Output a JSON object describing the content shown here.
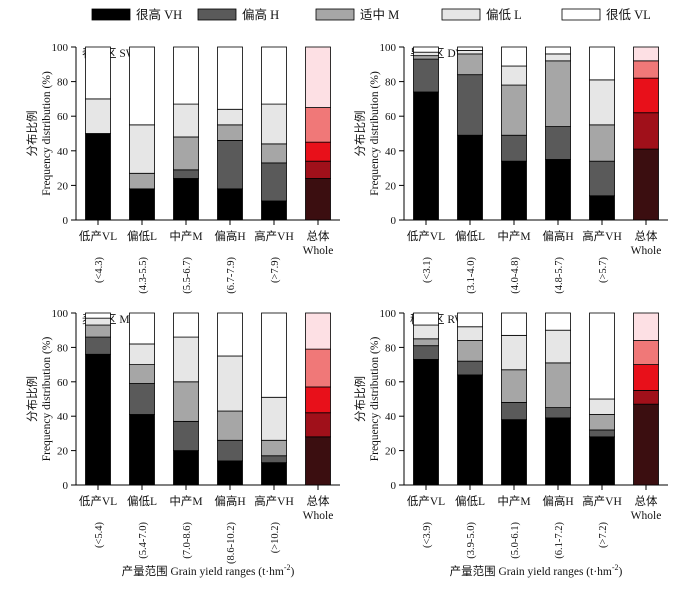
{
  "legend": [
    {
      "label": "很高 VH",
      "color": "#000000"
    },
    {
      "label": "偏高 H",
      "color": "#5a5a5a"
    },
    {
      "label": "适中 M",
      "color": "#a6a6a6"
    },
    {
      "label": "偏低 L",
      "color": "#e6e6e6"
    },
    {
      "label": "很低 VL",
      "color": "#ffffff"
    }
  ],
  "whole_colors": [
    "#3b0e10",
    "#a0101a",
    "#e8101a",
    "#f07878",
    "#fde0e4"
  ],
  "y_axis_label_cn": "分布比例",
  "y_axis_label_en": "Frequency distribution (%)",
  "x_axis_label": "产量范围 Grain yield ranges (t·hm",
  "x_axis_label_sup": "-2",
  "x_axis_label_close": ")",
  "chart_data": [
    {
      "type": "bar",
      "stacked": true,
      "title": "春麦区 SW",
      "categories": [
        "低产VL",
        "偏低L",
        "中产M",
        "偏高H",
        "高产VH",
        "总体"
      ],
      "categories_sub": [
        "",
        "",
        "",
        "",
        "",
        "Whole"
      ],
      "ranges": [
        "(<4.3)",
        "(4.3-5.5)",
        "(5.5-6.7)",
        "(6.7-7.9)",
        "(>7.9)",
        ""
      ],
      "ylim": [
        0,
        100
      ],
      "yticks": [
        "0",
        "20",
        "40",
        "60",
        "80",
        "100"
      ],
      "series": [
        {
          "name": "很高 VH",
          "values": [
            50,
            18,
            24,
            18,
            11,
            24
          ]
        },
        {
          "name": "偏高 H",
          "values": [
            0,
            0,
            5,
            28,
            22,
            10
          ]
        },
        {
          "name": "适中 M",
          "values": [
            0,
            9,
            19,
            9,
            11,
            11
          ]
        },
        {
          "name": "偏低 L",
          "values": [
            20,
            28,
            19,
            9,
            23,
            20
          ]
        },
        {
          "name": "很低 VL",
          "values": [
            30,
            45,
            33,
            36,
            33,
            35
          ]
        }
      ]
    },
    {
      "type": "bar",
      "stacked": true,
      "title": "旱作区 DW",
      "categories": [
        "低产VL",
        "偏低L",
        "中产M",
        "偏高H",
        "高产VH",
        "总体"
      ],
      "categories_sub": [
        "",
        "",
        "",
        "",
        "",
        "Whole"
      ],
      "ranges": [
        "(<3.1)",
        "(3.1-4.0)",
        "(4.0-4.8)",
        "(4.8-5.7)",
        "(>5.7)",
        ""
      ],
      "ylim": [
        0,
        100
      ],
      "yticks": [
        "0",
        "20",
        "40",
        "60",
        "80",
        "100"
      ],
      "series": [
        {
          "name": "很高 VH",
          "values": [
            74,
            49,
            34,
            35,
            14,
            41
          ]
        },
        {
          "name": "偏高 H",
          "values": [
            19,
            35,
            15,
            19,
            20,
            21
          ]
        },
        {
          "name": "适中 M",
          "values": [
            2,
            12,
            29,
            38,
            21,
            20
          ]
        },
        {
          "name": "偏低 L",
          "values": [
            2,
            2,
            11,
            4,
            26,
            10
          ]
        },
        {
          "name": "很低 VL",
          "values": [
            3,
            2,
            11,
            4,
            19,
            8
          ]
        }
      ]
    },
    {
      "type": "bar",
      "stacked": true,
      "title": "麦玉区 MW",
      "categories": [
        "低产VL",
        "偏低L",
        "中产M",
        "偏高H",
        "高产VH",
        "总体"
      ],
      "categories_sub": [
        "",
        "",
        "",
        "",
        "",
        "Whole"
      ],
      "ranges": [
        "(<5.4)",
        "(5.4-7.0)",
        "(7.0-8.6)",
        "(8.6-10.2)",
        "(>10.2)",
        ""
      ],
      "ylim": [
        0,
        100
      ],
      "yticks": [
        "0",
        "20",
        "40",
        "60",
        "80",
        "100"
      ],
      "series": [
        {
          "name": "很高 VH",
          "values": [
            76,
            41,
            20,
            14,
            13,
            28
          ]
        },
        {
          "name": "偏高 H",
          "values": [
            10,
            18,
            17,
            12,
            4,
            14
          ]
        },
        {
          "name": "适中 M",
          "values": [
            7,
            11,
            23,
            17,
            9,
            15
          ]
        },
        {
          "name": "偏低 L",
          "values": [
            4,
            12,
            26,
            32,
            25,
            22
          ]
        },
        {
          "name": "很低 VL",
          "values": [
            3,
            18,
            14,
            25,
            49,
            21
          ]
        }
      ]
    },
    {
      "type": "bar",
      "stacked": true,
      "title": "稻麦区 RW",
      "categories": [
        "低产VL",
        "偏低L",
        "中产M",
        "偏高H",
        "高产VH",
        "总体"
      ],
      "categories_sub": [
        "",
        "",
        "",
        "",
        "",
        "Whole"
      ],
      "ranges": [
        "(<3.9)",
        "(3.9-5.0)",
        "(5.0-6.1)",
        "(6.1-7.2)",
        "(>7.2)",
        ""
      ],
      "ylim": [
        0,
        100
      ],
      "yticks": [
        "0",
        "20",
        "40",
        "60",
        "80",
        "100"
      ],
      "series": [
        {
          "name": "很高 VH",
          "values": [
            73,
            64,
            38,
            39,
            28,
            47
          ]
        },
        {
          "name": "偏高 H",
          "values": [
            8,
            8,
            10,
            6,
            4,
            8
          ]
        },
        {
          "name": "适中 M",
          "values": [
            4,
            12,
            19,
            26,
            9,
            15
          ]
        },
        {
          "name": "偏低 L",
          "values": [
            8,
            8,
            20,
            19,
            9,
            14
          ]
        },
        {
          "name": "很低 VL",
          "values": [
            7,
            8,
            13,
            10,
            50,
            16
          ]
        }
      ]
    }
  ]
}
